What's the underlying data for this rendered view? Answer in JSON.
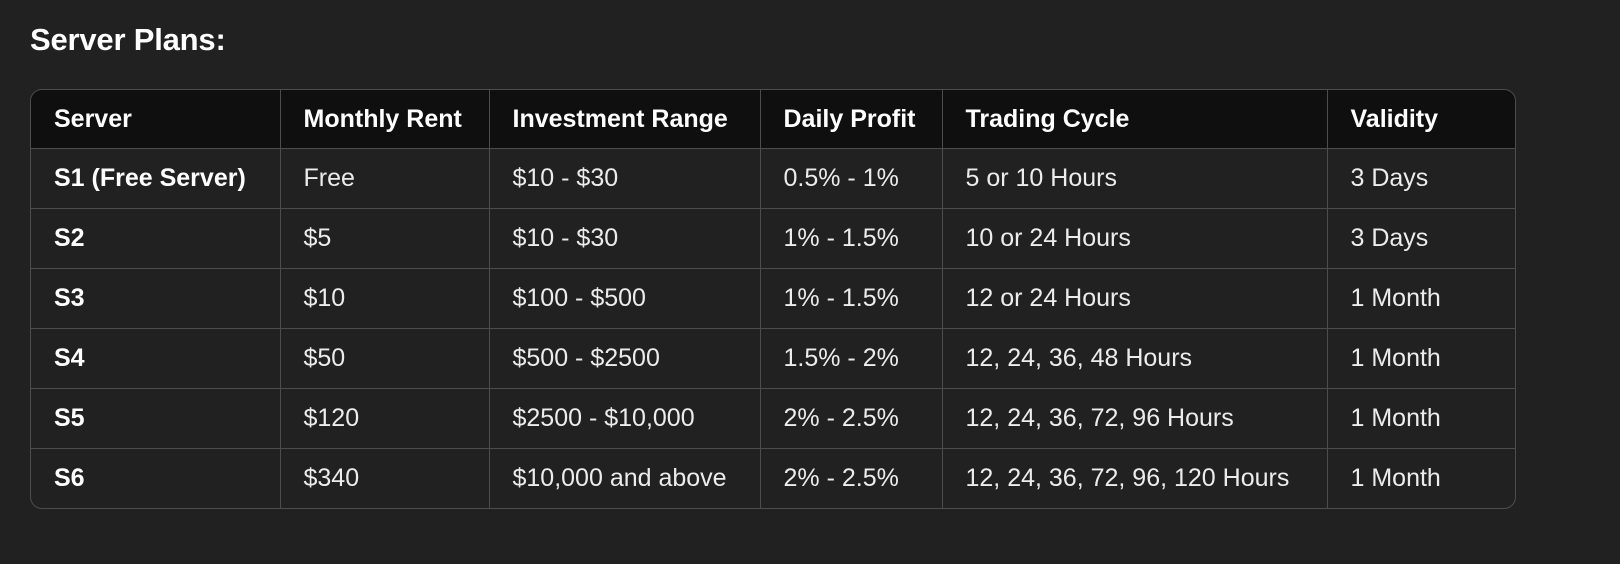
{
  "heading": "Server Plans:",
  "table": {
    "headers": [
      "Server",
      "Monthly Rent",
      "Investment Range",
      "Daily Profit",
      "Trading Cycle",
      "Validity"
    ],
    "rows": [
      [
        "S1 (Free Server)",
        "Free",
        "$10 - $30",
        "0.5% - 1%",
        "5 or 10 Hours",
        "3 Days"
      ],
      [
        "S2",
        "$5",
        "$10 - $30",
        "1% - 1.5%",
        "10 or 24 Hours",
        "3 Days"
      ],
      [
        "S3",
        "$10",
        "$100 - $500",
        "1% - 1.5%",
        "12 or 24 Hours",
        "1 Month"
      ],
      [
        "S4",
        "$50",
        "$500 - $2500",
        "1.5% - 2%",
        "12, 24, 36, 48 Hours",
        "1 Month"
      ],
      [
        "S5",
        "$120",
        "$2500 - $10,000",
        "2% - 2.5%",
        "12, 24, 36, 72, 96 Hours",
        "1 Month"
      ],
      [
        "S6",
        "$340",
        "$10,000 and above",
        "2% - 2.5%",
        "12, 24, 36, 72, 96, 120 Hours",
        "1 Month"
      ]
    ]
  }
}
